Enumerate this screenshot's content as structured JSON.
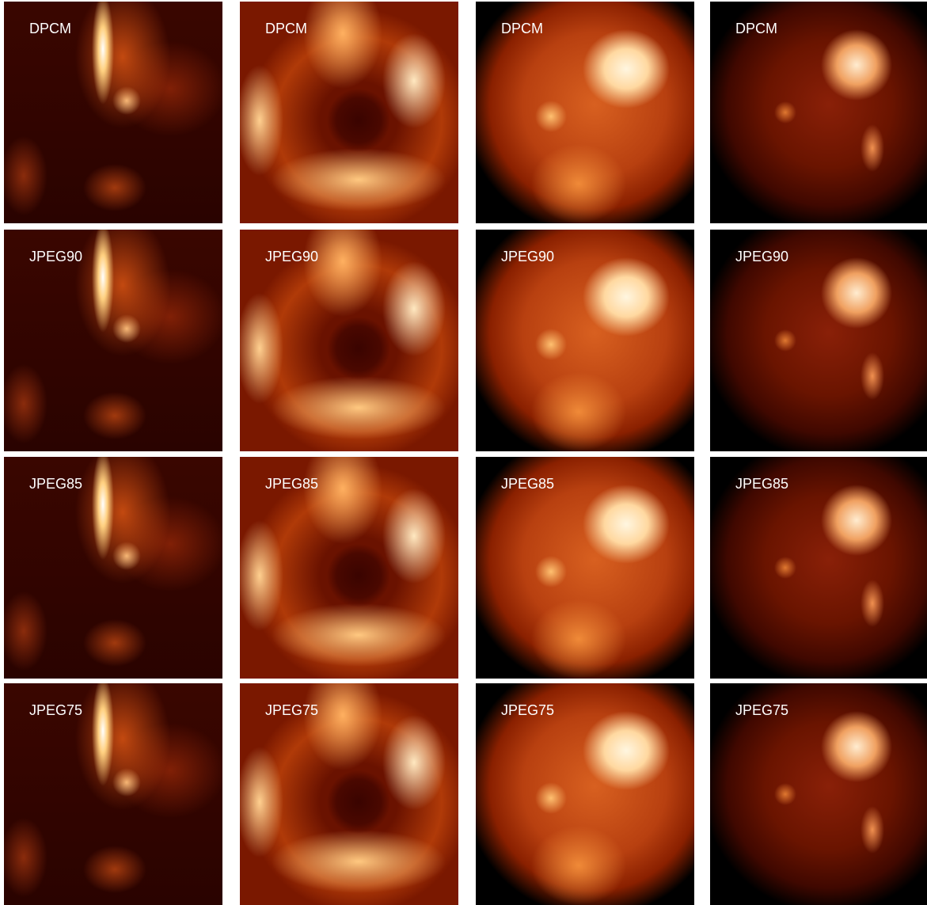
{
  "grid": [
    [
      "DPCM",
      "DPCM",
      "DPCM",
      "DPCM"
    ],
    [
      "JPEG90",
      "JPEG90",
      "JPEG90",
      "JPEG90"
    ],
    [
      "JPEG85",
      "JPEG85",
      "JPEG85",
      "JPEG85"
    ],
    [
      "JPEG75",
      "JPEG75",
      "JPEG75",
      "JPEG75"
    ]
  ]
}
